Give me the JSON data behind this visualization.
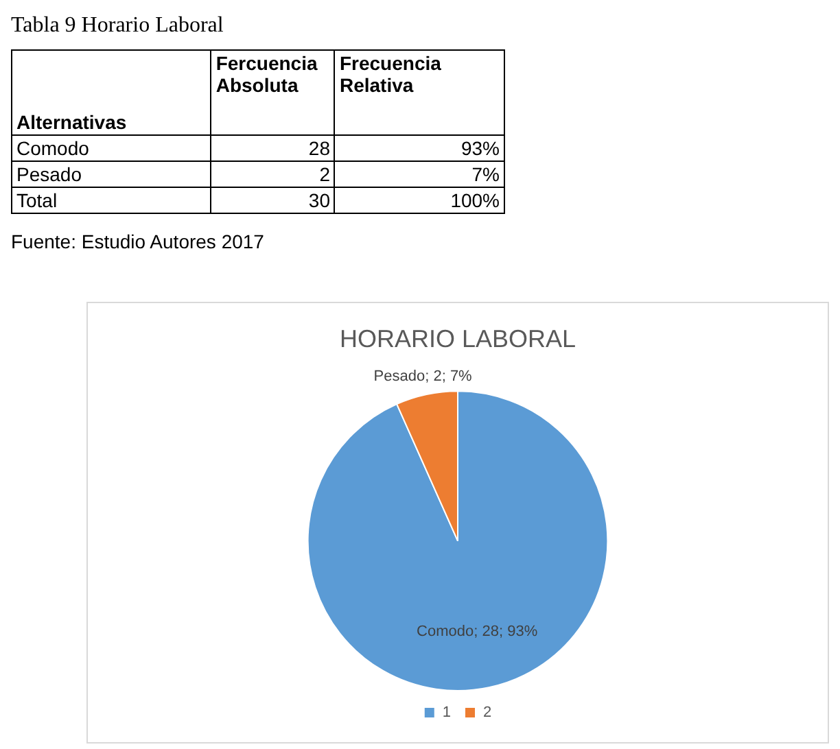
{
  "chart_data": {
    "type": "pie",
    "title": "HORARIO LABORAL",
    "categories": [
      "1",
      "2"
    ],
    "values": [
      28,
      2
    ],
    "colors": [
      "#5b9bd5",
      "#ed7d31"
    ],
    "value_labels": [
      "Comodo; 28; 93%",
      "Pesado; 2; 7%"
    ],
    "legend": "bottom",
    "annotations": [
      "Tabla 9 Horario  Laboral",
      "Alternativas",
      "Fercuencia Absoluta",
      "Frecuencia Relativa",
      "Comodo",
      "28",
      "93%",
      "Pesado",
      "2",
      "7%",
      "Total",
      "30",
      "100%",
      "Fuente: Estudio Autores 2017"
    ]
  }
}
